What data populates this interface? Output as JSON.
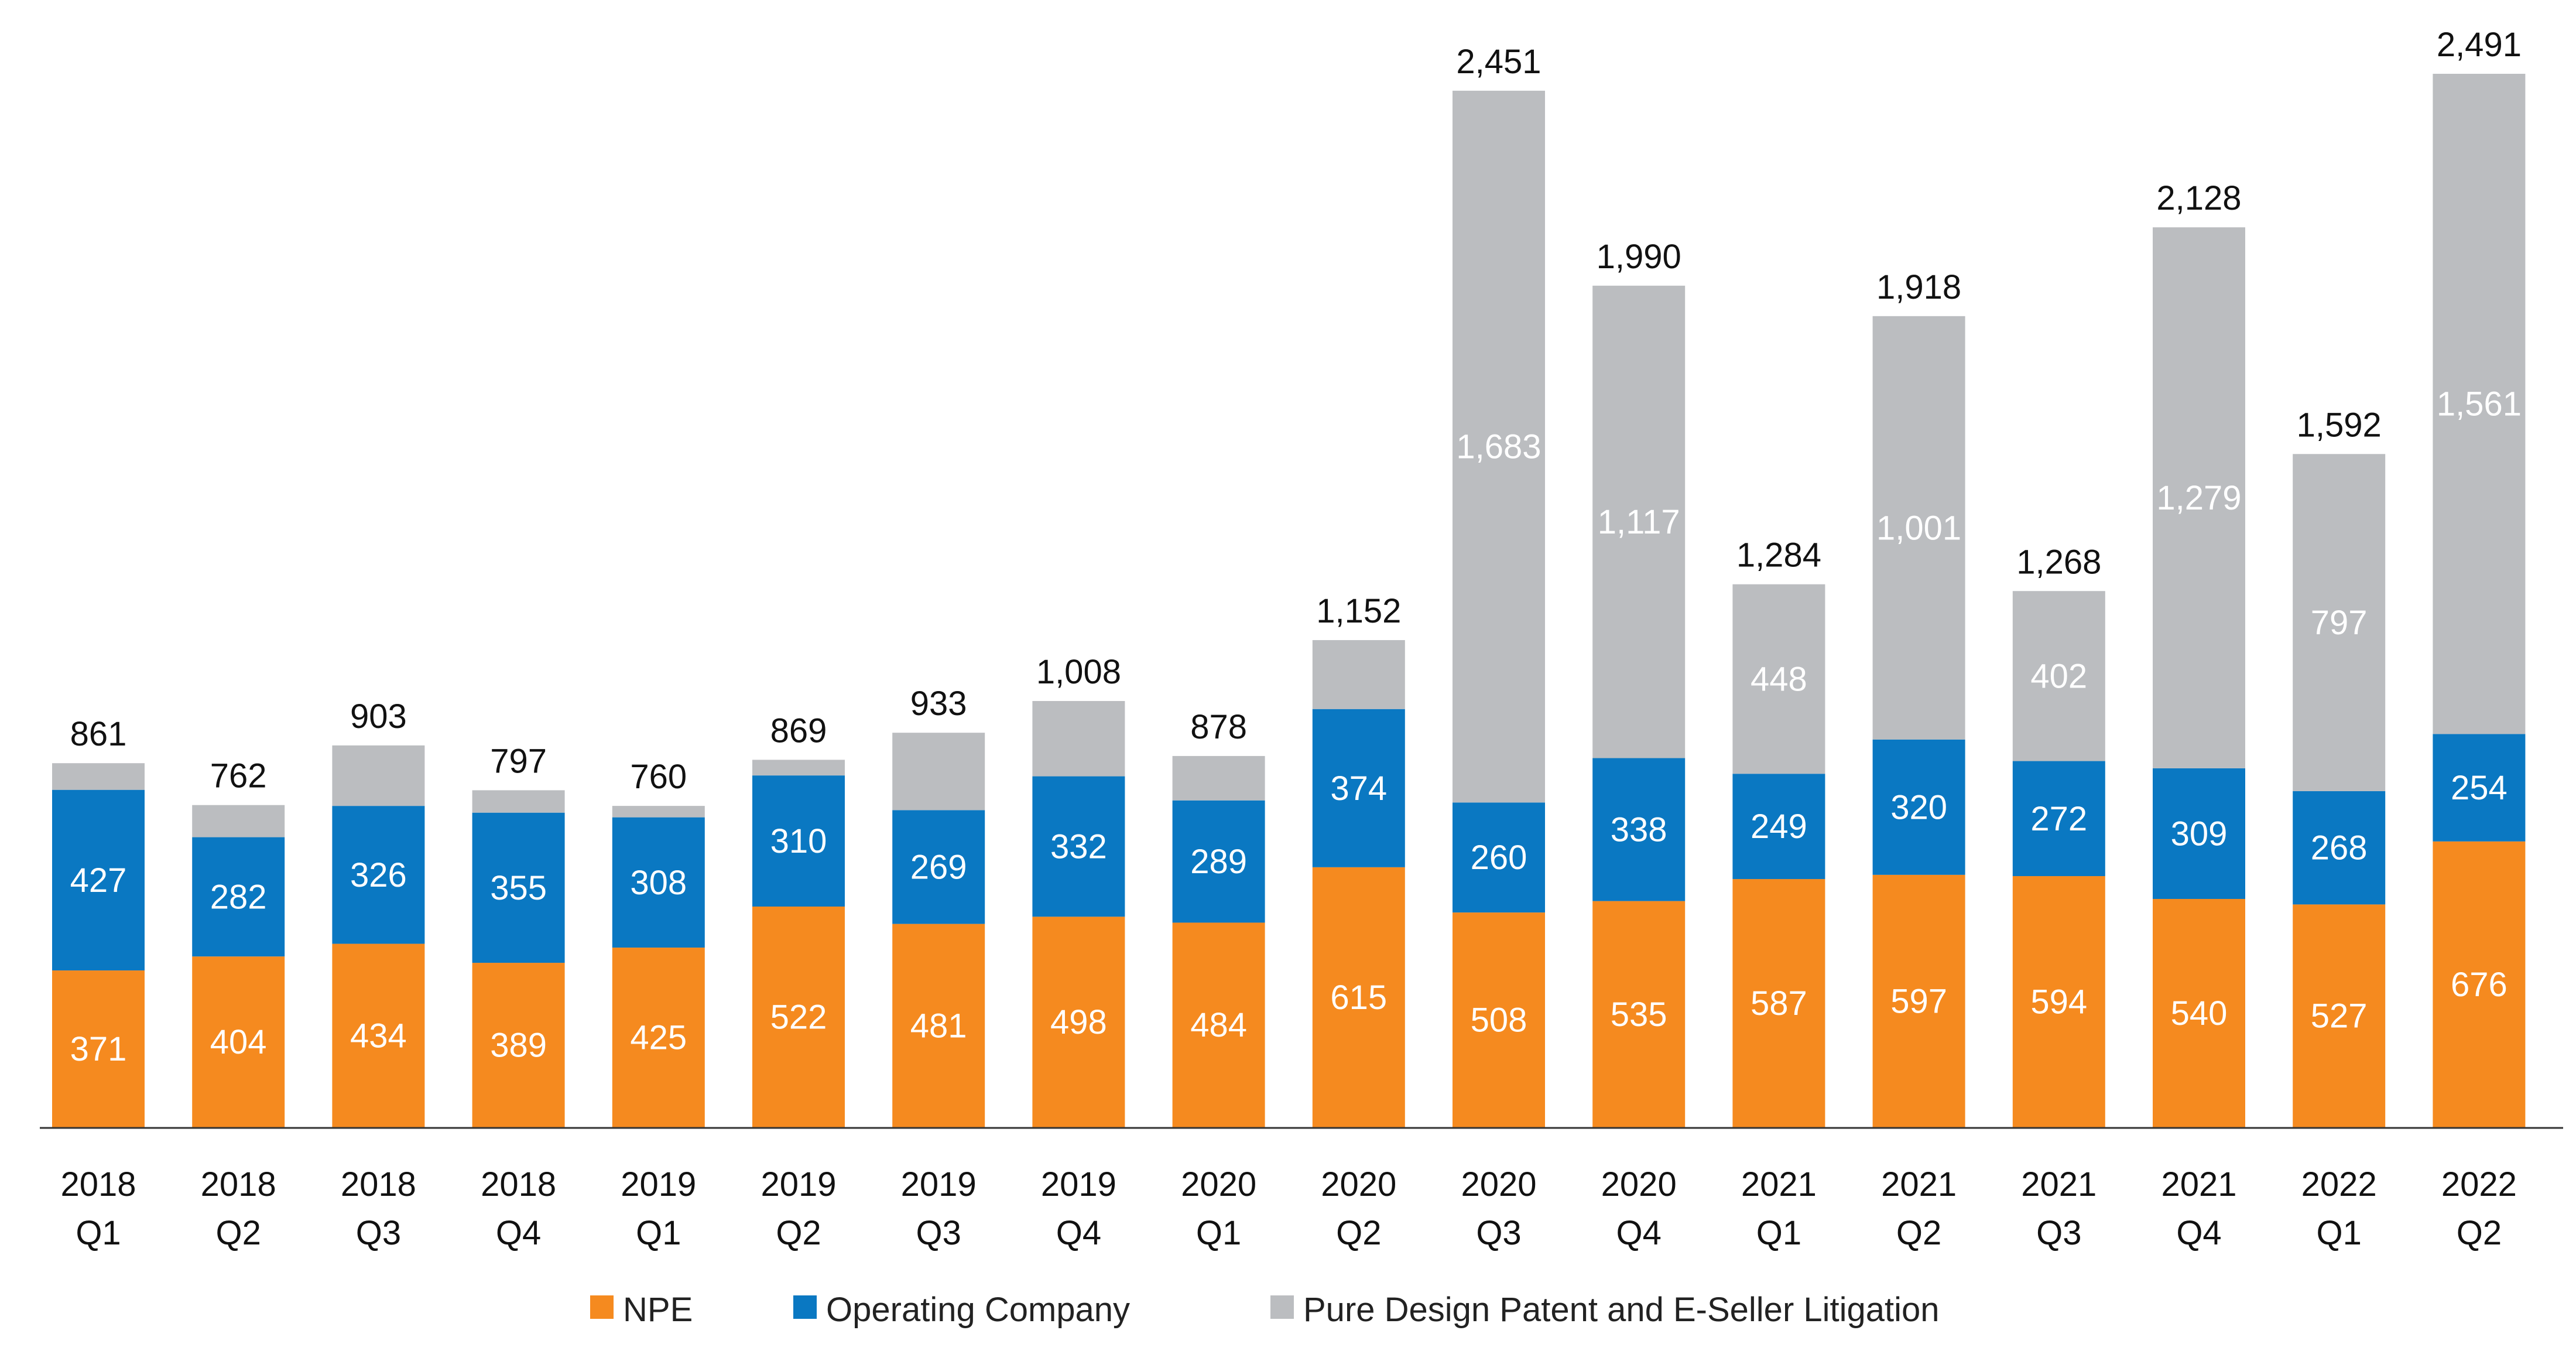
{
  "chart_data": {
    "type": "bar",
    "stacked": true,
    "categories": [
      {
        "year": "2018",
        "quarter": "Q1"
      },
      {
        "year": "2018",
        "quarter": "Q2"
      },
      {
        "year": "2018",
        "quarter": "Q3"
      },
      {
        "year": "2018",
        "quarter": "Q4"
      },
      {
        "year": "2019",
        "quarter": "Q1"
      },
      {
        "year": "2019",
        "quarter": "Q2"
      },
      {
        "year": "2019",
        "quarter": "Q3"
      },
      {
        "year": "2019",
        "quarter": "Q4"
      },
      {
        "year": "2020",
        "quarter": "Q1"
      },
      {
        "year": "2020",
        "quarter": "Q2"
      },
      {
        "year": "2020",
        "quarter": "Q3"
      },
      {
        "year": "2020",
        "quarter": "Q4"
      },
      {
        "year": "2021",
        "quarter": "Q1"
      },
      {
        "year": "2021",
        "quarter": "Q2"
      },
      {
        "year": "2021",
        "quarter": "Q3"
      },
      {
        "year": "2021",
        "quarter": "Q4"
      },
      {
        "year": "2022",
        "quarter": "Q1"
      },
      {
        "year": "2022",
        "quarter": "Q2"
      }
    ],
    "series": [
      {
        "name": "NPE",
        "color": "#f58a1f",
        "values": [
          371,
          404,
          434,
          389,
          425,
          522,
          481,
          498,
          484,
          615,
          508,
          535,
          587,
          597,
          594,
          540,
          527,
          676
        ],
        "labels": [
          "371",
          "404",
          "434",
          "389",
          "425",
          "522",
          "481",
          "498",
          "484",
          "615",
          "508",
          "535",
          "587",
          "597",
          "594",
          "540",
          "527",
          "676"
        ]
      },
      {
        "name": "Operating Company",
        "color": "#0a78c2",
        "values": [
          427,
          282,
          326,
          355,
          308,
          310,
          269,
          332,
          289,
          374,
          260,
          338,
          249,
          320,
          272,
          309,
          268,
          254
        ],
        "labels": [
          "427",
          "282",
          "326",
          "355",
          "308",
          "310",
          "269",
          "332",
          "289",
          "374",
          "260",
          "338",
          "249",
          "320",
          "272",
          "309",
          "268",
          "254"
        ]
      },
      {
        "name": "Pure Design Patent and E-Seller Litigation",
        "color": "#bbbdc0",
        "values": [
          63,
          76,
          143,
          53,
          27,
          37,
          183,
          178,
          105,
          163,
          1683,
          1117,
          448,
          1001,
          402,
          1279,
          797,
          1561
        ],
        "labels": [
          "",
          "",
          "",
          "",
          "",
          "",
          "",
          "",
          "",
          "",
          "1,683",
          "1,117",
          "448",
          "1,001",
          "402",
          "1,279",
          "797",
          "1,561"
        ]
      }
    ],
    "totals": [
      "861",
      "762",
      "903",
      "797",
      "760",
      "869",
      "933",
      "1,008",
      "878",
      "1,152",
      "2,451",
      "1,990",
      "1,284",
      "1,918",
      "1,268",
      "2,128",
      "1,592",
      "2,491"
    ],
    "title": "",
    "xlabel": "",
    "ylabel": "",
    "ylim": [
      0,
      2491
    ],
    "grid": false,
    "legend": "bottom"
  }
}
